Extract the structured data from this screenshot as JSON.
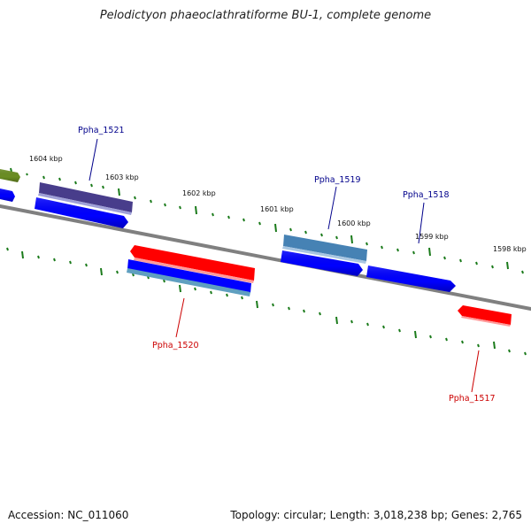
{
  "title": "Pelodictyon phaeoclathratiforme BU-1, complete genome",
  "footer": {
    "accession": "Accession: NC_011060",
    "summary": "Topology: circular; Length: 3,018,238 bp; Genes: 2,765"
  },
  "colors": {
    "backbone": "#808080",
    "tick": "#1a7a1a",
    "label_blue": "#00008b",
    "label_red": "#cc0000"
  },
  "kbp_labels": [
    "1604 kbp",
    "1603 kbp",
    "1602 kbp",
    "1601 kbp",
    "1600 kbp",
    "1599 kbp",
    "1598 kbp"
  ],
  "gene_labels": [
    {
      "text": "Ppha_1521",
      "color": "#00008b"
    },
    {
      "text": "Ppha_1519",
      "color": "#00008b"
    },
    {
      "text": "Ppha_1518",
      "color": "#00008b"
    },
    {
      "text": "Ppha_1520",
      "color": "#cc0000"
    },
    {
      "text": "Ppha_1517",
      "color": "#cc0000"
    }
  ],
  "genes": [
    {
      "name": "olive-gene",
      "color": "#6b8e23"
    },
    {
      "name": "blue-gene-left-edge",
      "color": "#0000ff"
    },
    {
      "name": "ppha-1521-gene",
      "color": "#483d8b"
    },
    {
      "name": "blue-gene-1",
      "color": "#0000ff"
    },
    {
      "name": "ppha-1520-gene",
      "color": "#ff0000"
    },
    {
      "name": "blue-gene-2",
      "color": "#0000ff"
    },
    {
      "name": "steelblue-gene",
      "color": "#4682b4"
    },
    {
      "name": "ppha-1519-gene",
      "color": "#4682b4"
    },
    {
      "name": "blue-gene-3",
      "color": "#0000ff"
    },
    {
      "name": "ppha-1518-gene",
      "color": "#0000ff"
    },
    {
      "name": "ppha-1517-gene",
      "color": "#ff0000"
    }
  ]
}
